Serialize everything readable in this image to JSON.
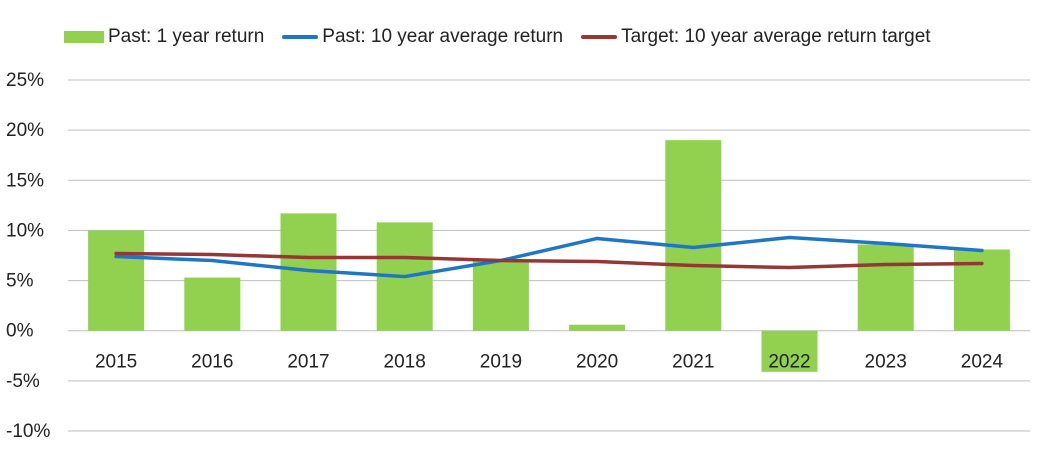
{
  "chart_data": {
    "type": "bar",
    "categories": [
      "2015",
      "2016",
      "2017",
      "2018",
      "2019",
      "2020",
      "2021",
      "2022",
      "2023",
      "2024"
    ],
    "series": [
      {
        "name": "Past: 1 year return",
        "kind": "bar",
        "color": "#92d050",
        "values": [
          10.0,
          5.3,
          11.7,
          10.8,
          7.0,
          0.6,
          19.0,
          -4.1,
          8.6,
          8.1
        ]
      },
      {
        "name": "Past: 10 year average return",
        "kind": "line",
        "color": "#1f77c4",
        "values": [
          7.4,
          7.0,
          6.0,
          5.4,
          7.0,
          9.2,
          8.3,
          9.3,
          8.7,
          8.0
        ]
      },
      {
        "name": "Target: 10 year average return target",
        "kind": "line",
        "color": "#953735",
        "values": [
          7.7,
          7.6,
          7.3,
          7.3,
          7.0,
          6.9,
          6.5,
          6.3,
          6.6,
          6.7
        ]
      }
    ],
    "ylim": [
      -10,
      25
    ],
    "yticks": [
      "25%",
      "20%",
      "15%",
      "10%",
      "5%",
      "0%",
      "-5%",
      "-10%"
    ],
    "ytick_values": [
      25,
      20,
      15,
      10,
      5,
      0,
      -5,
      -10
    ],
    "grid": true,
    "legend_position": "top"
  }
}
